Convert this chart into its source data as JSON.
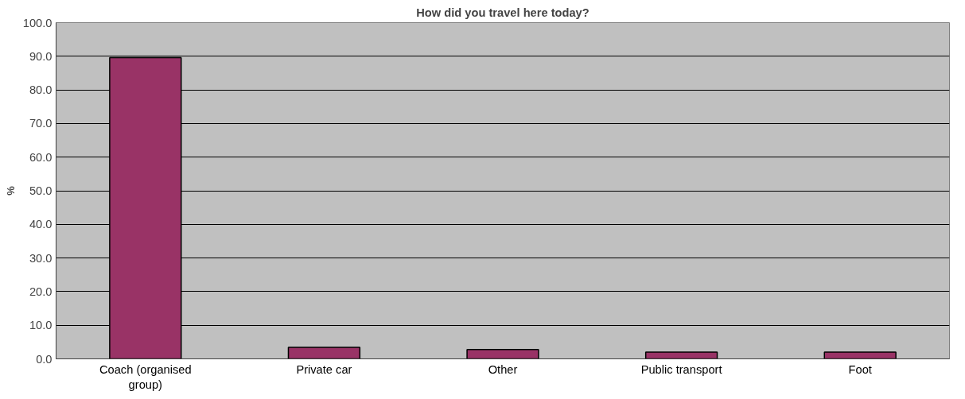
{
  "chart_data": {
    "type": "bar",
    "title": "How did you travel here today?",
    "ylabel": "%",
    "categories": [
      "Coach (organised group)",
      "Private car",
      "Other",
      "Public transport",
      "Foot"
    ],
    "values": [
      89.6,
      3.4,
      2.8,
      2.0,
      2.0
    ],
    "color": "#993366",
    "ylim": [
      0,
      100
    ],
    "yticks": [
      {
        "value": 0,
        "label": "0.0"
      },
      {
        "value": 10,
        "label": "10.0"
      },
      {
        "value": 20,
        "label": "20.0"
      },
      {
        "value": 30,
        "label": "30.0"
      },
      {
        "value": 40,
        "label": "40.0"
      },
      {
        "value": 50,
        "label": "50.0"
      },
      {
        "value": 60,
        "label": "60.0"
      },
      {
        "value": 70,
        "label": "70.0"
      },
      {
        "value": 80,
        "label": "80.0"
      },
      {
        "value": 90,
        "label": "90.0"
      },
      {
        "value": 100,
        "label": "100.0"
      }
    ],
    "grid": "y"
  }
}
